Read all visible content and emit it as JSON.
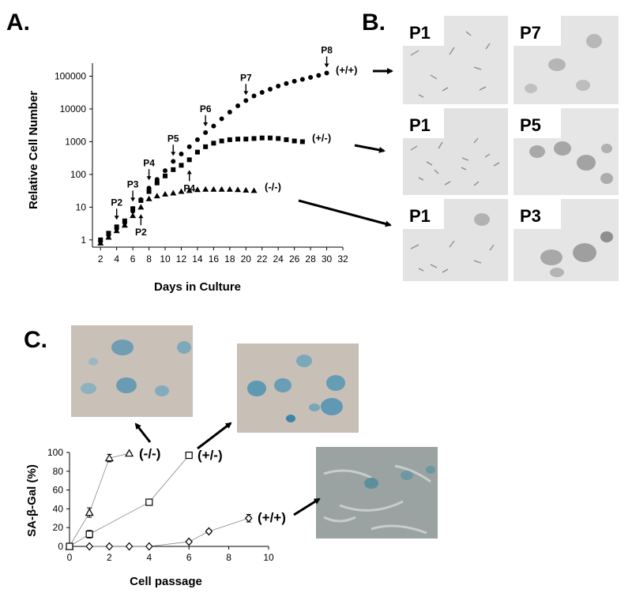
{
  "panels": {
    "a": "A.",
    "b": "B.",
    "c": "C."
  },
  "chart_data": [
    {
      "panel": "A",
      "type": "scatter",
      "xlabel": "Days in Culture",
      "ylabel": "Relative Cell Number",
      "xlim": [
        1,
        32
      ],
      "ylim": [
        0.6,
        250000
      ],
      "yscale": "log",
      "xticks": [
        2,
        4,
        6,
        8,
        10,
        12,
        14,
        16,
        18,
        20,
        22,
        24,
        26,
        28,
        30,
        32
      ],
      "yticks": [
        1,
        10,
        100,
        1000,
        10000,
        100000
      ],
      "ytick_labels": [
        "1",
        "10",
        "100",
        "1000",
        "10000",
        "100000"
      ],
      "series": [
        {
          "name": "(+/+)",
          "marker": "circle",
          "x": [
            2,
            3,
            4,
            5,
            6,
            7,
            8,
            9,
            10,
            11,
            12,
            13,
            14,
            15,
            16,
            17,
            18,
            19,
            20,
            21,
            22,
            23,
            24,
            25,
            26,
            27,
            28,
            29,
            30
          ],
          "y": [
            0.9,
            1.4,
            2.2,
            3.3,
            7.5,
            17,
            38,
            70,
            130,
            250,
            420,
            700,
            1150,
            1900,
            3000,
            5000,
            8000,
            12500,
            18000,
            25000,
            32000,
            40000,
            50000,
            60000,
            70000,
            80000,
            92000,
            106000,
            125000
          ]
        },
        {
          "name": "(+/-)",
          "marker": "square",
          "x": [
            2,
            3,
            4,
            5,
            6,
            7,
            8,
            9,
            10,
            11,
            12,
            13,
            14,
            15,
            16,
            17,
            18,
            19,
            20,
            21,
            22,
            23,
            24,
            25,
            26,
            27
          ],
          "y": [
            1.0,
            1.6,
            2.5,
            3.8,
            9,
            16,
            30,
            55,
            90,
            140,
            190,
            280,
            480,
            700,
            900,
            1050,
            1150,
            1200,
            1200,
            1250,
            1300,
            1300,
            1250,
            1150,
            1050,
            1000
          ]
        },
        {
          "name": "(-/-)",
          "marker": "triangle",
          "x": [
            2,
            3,
            4,
            5,
            6,
            7,
            8,
            9,
            10,
            11,
            12,
            13,
            14,
            15,
            16,
            17,
            18,
            19,
            20,
            21
          ],
          "y": [
            0.8,
            1.2,
            1.9,
            2.8,
            5.5,
            10,
            18,
            22,
            25,
            27,
            30,
            32,
            34,
            35,
            35,
            35,
            35,
            34,
            33,
            32
          ]
        }
      ],
      "annotations": [
        {
          "text": "P2",
          "x": 4,
          "y": 2.8,
          "dir": "down"
        },
        {
          "text": "P3",
          "x": 6,
          "y": 10,
          "dir": "down"
        },
        {
          "text": "P4",
          "x": 8,
          "y": 45,
          "dir": "down"
        },
        {
          "text": "P5",
          "x": 11,
          "y": 250,
          "dir": "down"
        },
        {
          "text": "P6",
          "x": 15,
          "y": 2000,
          "dir": "down"
        },
        {
          "text": "P7",
          "x": 20,
          "y": 18000,
          "dir": "down"
        },
        {
          "text": "P8",
          "x": 30,
          "y": 125000,
          "dir": "down"
        },
        {
          "text": "P2",
          "x": 7,
          "y": 9,
          "dir": "up"
        },
        {
          "text": "P4",
          "x": 13,
          "y": 200,
          "dir": "up"
        }
      ]
    },
    {
      "panel": "C",
      "type": "scatter",
      "xlabel": "Cell passage",
      "ylabel": "SA-β-Gal  (%)",
      "xlim": [
        0,
        10
      ],
      "ylim": [
        0,
        100
      ],
      "xticks": [
        0,
        2,
        4,
        6,
        8,
        10
      ],
      "yticks": [
        0,
        20,
        40,
        60,
        80,
        100
      ],
      "series": [
        {
          "name": "(-/-)",
          "marker": "triangle",
          "x": [
            0,
            1,
            2,
            3
          ],
          "y": [
            0,
            36,
            94,
            99
          ],
          "err": [
            0,
            5,
            4,
            1
          ]
        },
        {
          "name": "(+/-)",
          "marker": "square",
          "x": [
            0,
            1,
            4,
            6
          ],
          "y": [
            0,
            13,
            47,
            97
          ],
          "err": [
            0,
            4,
            3,
            1
          ]
        },
        {
          "name": "(+/+)",
          "marker": "diamond",
          "x": [
            1,
            2,
            3,
            4,
            6,
            7,
            9
          ],
          "y": [
            0,
            0,
            0,
            0,
            5,
            16,
            30
          ],
          "err": [
            0,
            0,
            0,
            0,
            1,
            2,
            4
          ]
        }
      ]
    }
  ],
  "panel_b": {
    "rows": [
      {
        "genotype": "(+/+)",
        "left": "P1",
        "right": "P7"
      },
      {
        "genotype": "(+/-)",
        "left": "P1",
        "right": "P5"
      },
      {
        "genotype": "(-/-)",
        "left": "P1",
        "right": "P3"
      }
    ]
  },
  "panel_c_labels": {
    "minus_minus": "(-/-)",
    "plus_minus": "(+/-)",
    "plus_plus": "(+/+)"
  }
}
